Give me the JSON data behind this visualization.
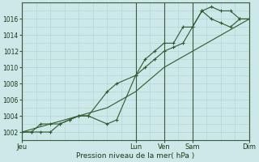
{
  "xlabel": "Pression niveau de la mer( hPa )",
  "bg_color": "#cce8e8",
  "grid_color": "#b0d4d4",
  "line_color": "#2d5a2d",
  "ylim": [
    1001.0,
    1018.0
  ],
  "yticks": [
    1002,
    1004,
    1006,
    1008,
    1010,
    1012,
    1014,
    1016
  ],
  "xlim": [
    0,
    96
  ],
  "day_ticks_x": [
    0,
    48,
    60,
    72,
    96
  ],
  "day_labels": [
    "Jeu",
    "Lun",
    "Ven",
    "Sam",
    "Dim"
  ],
  "series1_x": [
    0,
    4,
    8,
    12,
    16,
    20,
    24,
    28,
    36,
    40,
    48,
    52,
    56,
    60,
    64,
    68,
    72,
    76,
    80,
    84,
    88,
    92,
    96
  ],
  "series1_y": [
    1002,
    1002,
    1003,
    1003,
    1003,
    1003.5,
    1004,
    1004,
    1003,
    1003.5,
    1009,
    1010,
    1011,
    1012,
    1012.5,
    1013,
    1015,
    1017,
    1017.5,
    1017,
    1017,
    1016,
    1016
  ],
  "series2_x": [
    0,
    4,
    8,
    12,
    16,
    20,
    24,
    28,
    36,
    40,
    48,
    52,
    56,
    60,
    64,
    68,
    72,
    76,
    80,
    84,
    88,
    92,
    96
  ],
  "series2_y": [
    1002,
    1002,
    1002,
    1002,
    1003,
    1003.5,
    1004,
    1004,
    1007,
    1008,
    1009,
    1011,
    1012,
    1013,
    1013,
    1015,
    1015,
    1017,
    1016,
    1015.5,
    1015,
    1016,
    1016
  ],
  "series3_x": [
    0,
    12,
    24,
    36,
    48,
    60,
    72,
    84,
    96
  ],
  "series3_y": [
    1002,
    1003,
    1004,
    1005,
    1007,
    1010,
    1012,
    1014,
    1016
  ]
}
